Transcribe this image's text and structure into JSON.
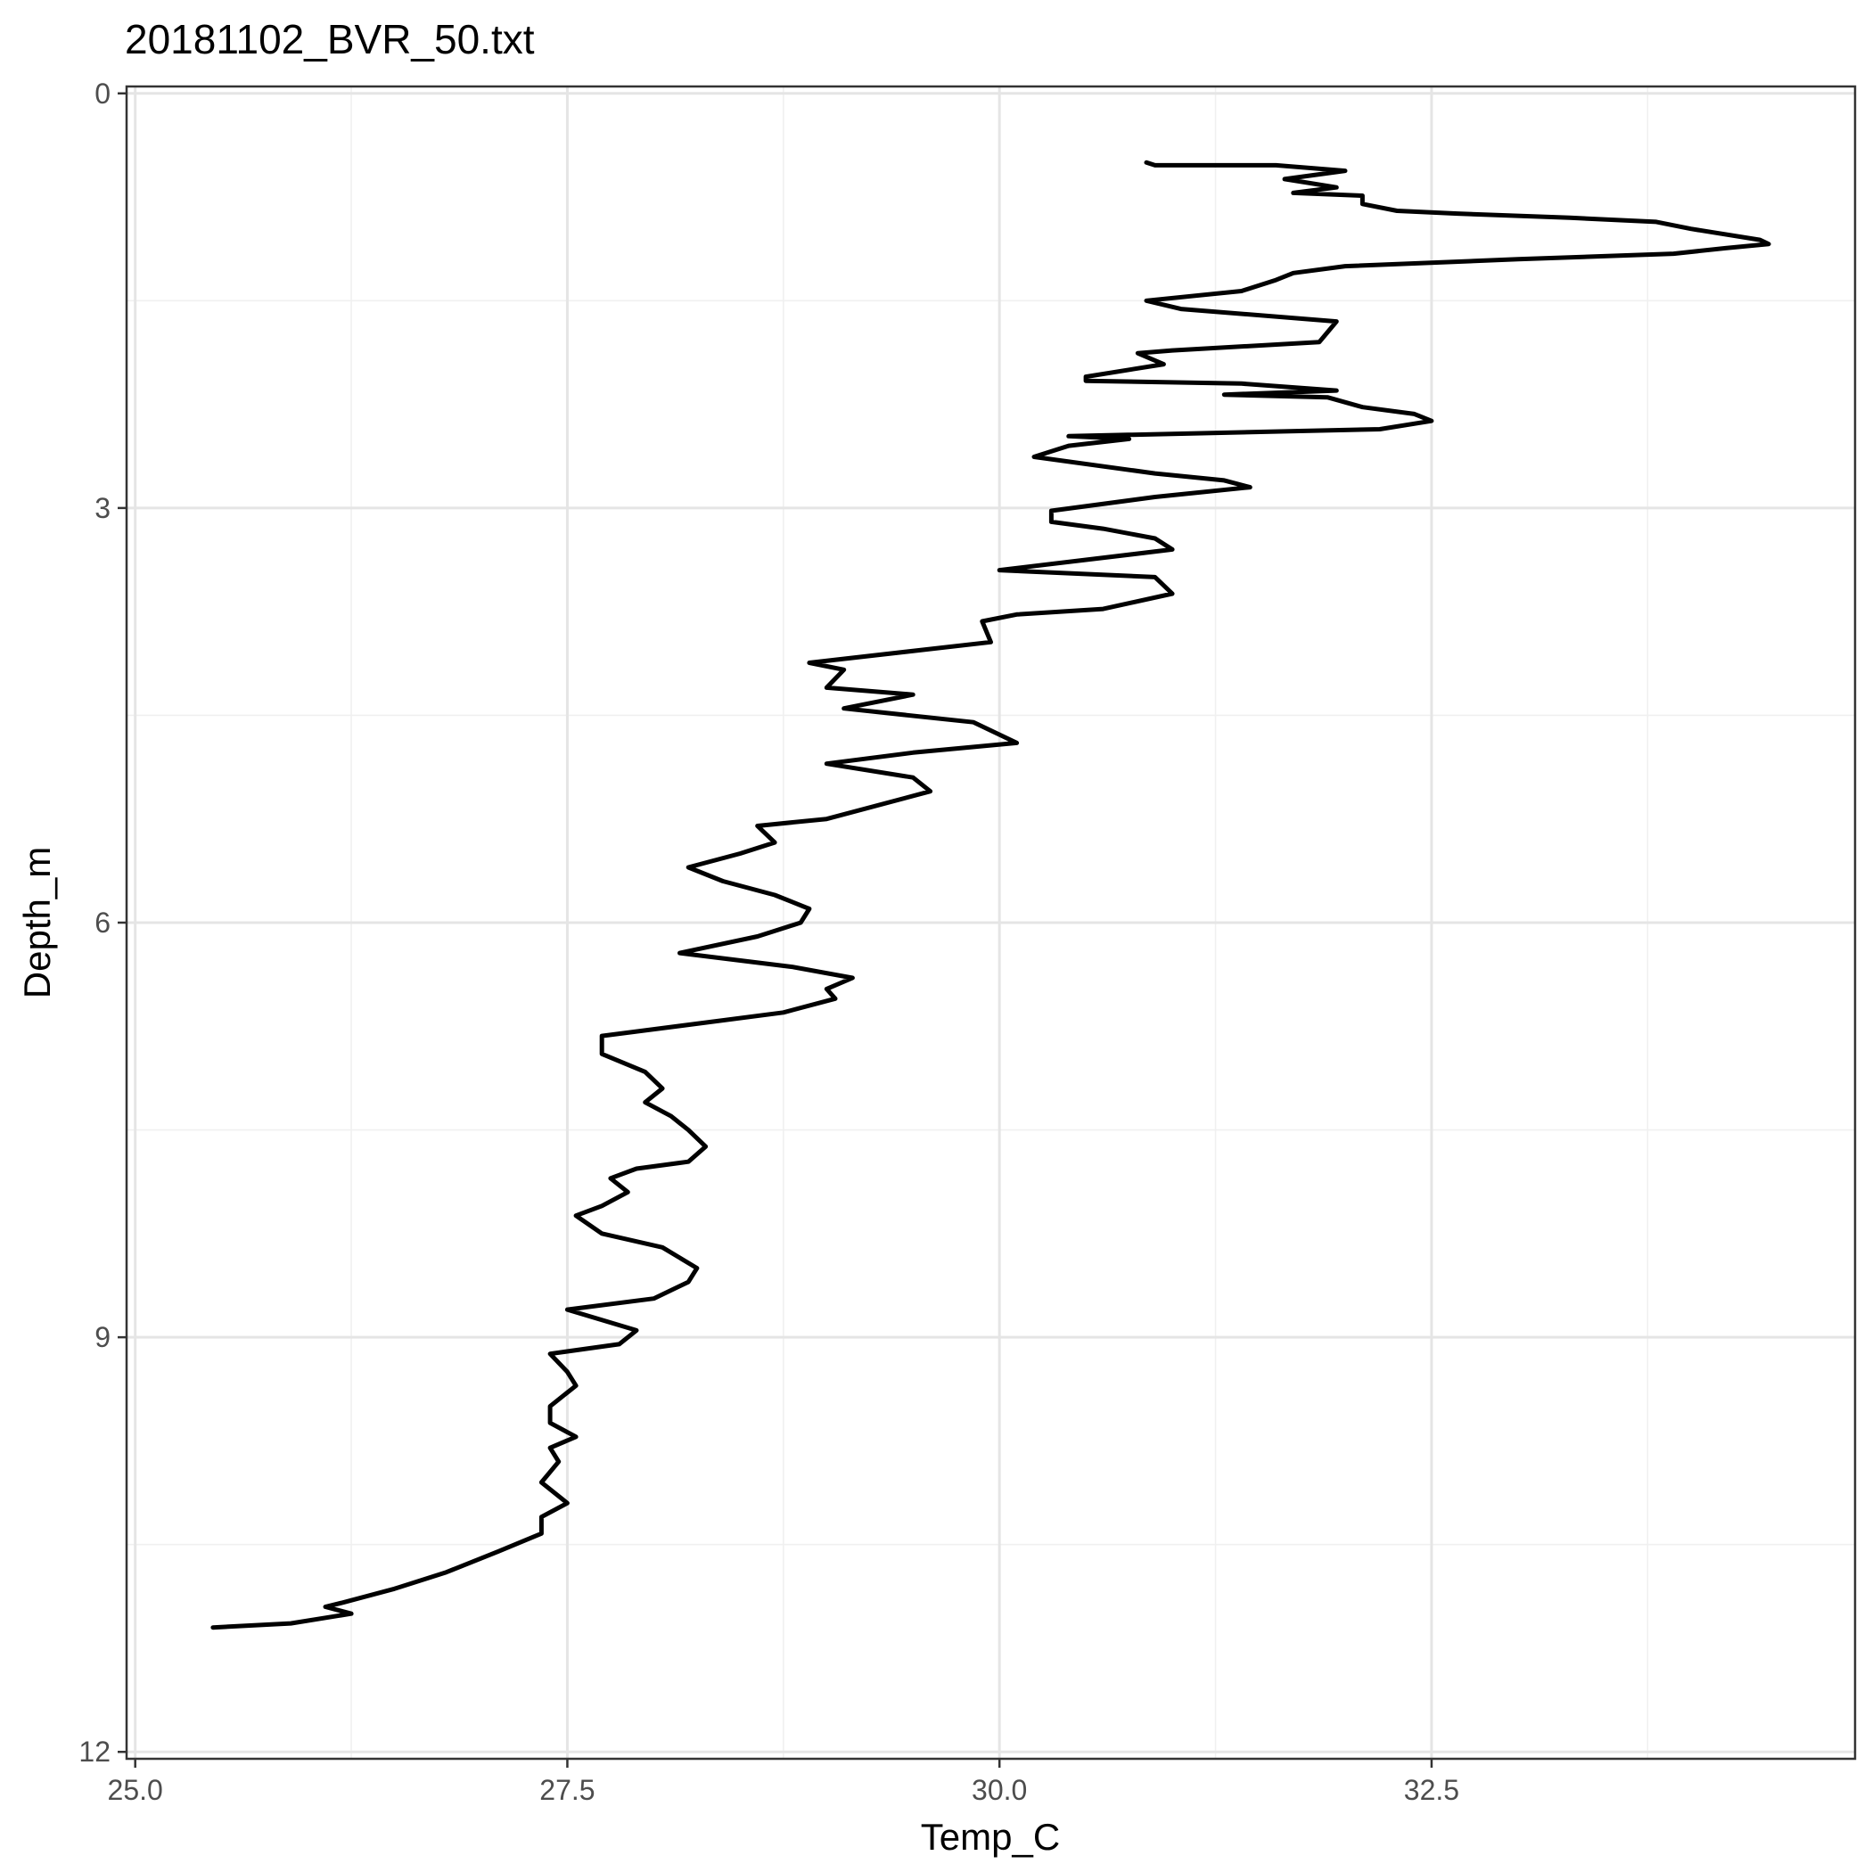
{
  "chart_data": {
    "type": "line",
    "title": "20181102_BVR_50.txt",
    "xlabel": "Temp_C",
    "ylabel": "Depth_m",
    "xlim": [
      24.95,
      34.95
    ],
    "ylim": [
      12.05,
      -0.05
    ],
    "y_reversed": true,
    "x_ticks": [
      25.0,
      27.5,
      30.0,
      32.5
    ],
    "x_tick_labels": [
      "25.0",
      "27.5",
      "30.0",
      "32.5"
    ],
    "y_ticks": [
      0,
      3,
      6,
      9,
      12
    ],
    "y_tick_labels": [
      "0",
      "3",
      "6",
      "9",
      "12"
    ],
    "x_minor_ticks": [
      26.25,
      28.75,
      31.25,
      33.75
    ],
    "y_minor_ticks": [
      1.5,
      4.5,
      7.5,
      10.5
    ],
    "grid": true,
    "legend": "none",
    "line_color": "#000000",
    "series": [
      {
        "values": [
          [
            30.85,
            0.5
          ],
          [
            30.9,
            0.52
          ],
          [
            31.6,
            0.52
          ],
          [
            32.0,
            0.56
          ],
          [
            31.65,
            0.62
          ],
          [
            31.95,
            0.68
          ],
          [
            31.7,
            0.72
          ],
          [
            32.1,
            0.74
          ],
          [
            32.1,
            0.8
          ],
          [
            32.3,
            0.85
          ],
          [
            32.65,
            0.87
          ],
          [
            33.3,
            0.9
          ],
          [
            33.8,
            0.93
          ],
          [
            34.0,
            0.98
          ],
          [
            34.4,
            1.06
          ],
          [
            34.45,
            1.09
          ],
          [
            34.2,
            1.12
          ],
          [
            33.9,
            1.16
          ],
          [
            33.0,
            1.2
          ],
          [
            32.0,
            1.25
          ],
          [
            31.7,
            1.3
          ],
          [
            31.6,
            1.35
          ],
          [
            31.4,
            1.43
          ],
          [
            30.85,
            1.5
          ],
          [
            31.05,
            1.56
          ],
          [
            31.95,
            1.65
          ],
          [
            31.85,
            1.8
          ],
          [
            31.0,
            1.86
          ],
          [
            30.8,
            1.88
          ],
          [
            30.95,
            1.96
          ],
          [
            30.5,
            2.05
          ],
          [
            30.5,
            2.08
          ],
          [
            31.4,
            2.1
          ],
          [
            31.95,
            2.15
          ],
          [
            31.3,
            2.18
          ],
          [
            31.9,
            2.2
          ],
          [
            32.1,
            2.27
          ],
          [
            32.4,
            2.32
          ],
          [
            32.5,
            2.37
          ],
          [
            32.2,
            2.43
          ],
          [
            30.4,
            2.48
          ],
          [
            30.75,
            2.5
          ],
          [
            30.4,
            2.55
          ],
          [
            30.2,
            2.63
          ],
          [
            30.9,
            2.75
          ],
          [
            31.3,
            2.8
          ],
          [
            31.45,
            2.85
          ],
          [
            30.9,
            2.92
          ],
          [
            30.3,
            3.02
          ],
          [
            30.3,
            3.1
          ],
          [
            30.6,
            3.15
          ],
          [
            30.9,
            3.22
          ],
          [
            31.0,
            3.3
          ],
          [
            30.0,
            3.45
          ],
          [
            30.9,
            3.5
          ],
          [
            31.0,
            3.62
          ],
          [
            30.6,
            3.73
          ],
          [
            30.1,
            3.77
          ],
          [
            29.9,
            3.82
          ],
          [
            29.95,
            3.97
          ],
          [
            28.9,
            4.12
          ],
          [
            29.1,
            4.17
          ],
          [
            29.0,
            4.3
          ],
          [
            29.5,
            4.35
          ],
          [
            29.1,
            4.45
          ],
          [
            29.85,
            4.55
          ],
          [
            30.1,
            4.7
          ],
          [
            29.5,
            4.77
          ],
          [
            29.0,
            4.85
          ],
          [
            29.5,
            4.95
          ],
          [
            29.6,
            5.05
          ],
          [
            29.0,
            5.25
          ],
          [
            28.6,
            5.3
          ],
          [
            28.7,
            5.42
          ],
          [
            28.5,
            5.5
          ],
          [
            28.2,
            5.6
          ],
          [
            28.4,
            5.7
          ],
          [
            28.7,
            5.8
          ],
          [
            28.9,
            5.9
          ],
          [
            28.85,
            6.0
          ],
          [
            28.6,
            6.1
          ],
          [
            28.15,
            6.22
          ],
          [
            28.8,
            6.32
          ],
          [
            29.15,
            6.4
          ],
          [
            29.0,
            6.48
          ],
          [
            29.05,
            6.55
          ],
          [
            28.75,
            6.65
          ],
          [
            27.95,
            6.78
          ],
          [
            27.7,
            6.82
          ],
          [
            27.7,
            6.95
          ],
          [
            27.95,
            7.08
          ],
          [
            28.05,
            7.2
          ],
          [
            27.95,
            7.3
          ],
          [
            28.1,
            7.4
          ],
          [
            28.2,
            7.5
          ],
          [
            28.3,
            7.62
          ],
          [
            28.2,
            7.73
          ],
          [
            27.9,
            7.78
          ],
          [
            27.75,
            7.85
          ],
          [
            27.85,
            7.95
          ],
          [
            27.7,
            8.05
          ],
          [
            27.55,
            8.12
          ],
          [
            27.7,
            8.25
          ],
          [
            28.05,
            8.35
          ],
          [
            28.25,
            8.5
          ],
          [
            28.2,
            8.6
          ],
          [
            28.0,
            8.72
          ],
          [
            27.5,
            8.8
          ],
          [
            27.9,
            8.95
          ],
          [
            27.8,
            9.05
          ],
          [
            27.4,
            9.12
          ],
          [
            27.5,
            9.25
          ],
          [
            27.55,
            9.35
          ],
          [
            27.4,
            9.5
          ],
          [
            27.4,
            9.62
          ],
          [
            27.55,
            9.72
          ],
          [
            27.4,
            9.8
          ],
          [
            27.45,
            9.9
          ],
          [
            27.35,
            10.05
          ],
          [
            27.5,
            10.2
          ],
          [
            27.35,
            10.3
          ],
          [
            27.35,
            10.42
          ],
          [
            27.1,
            10.55
          ],
          [
            26.8,
            10.7
          ],
          [
            26.5,
            10.82
          ],
          [
            26.2,
            10.92
          ],
          [
            26.1,
            10.95
          ],
          [
            26.25,
            11.0
          ],
          [
            25.9,
            11.07
          ],
          [
            25.45,
            11.1
          ]
        ]
      }
    ]
  }
}
